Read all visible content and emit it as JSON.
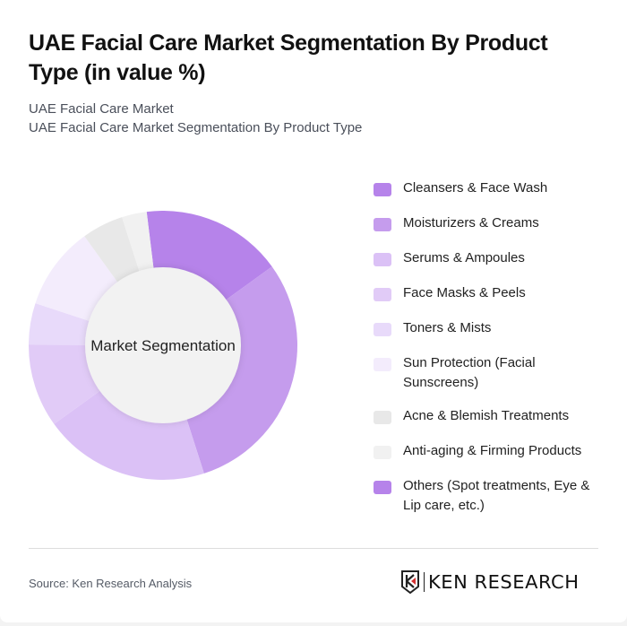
{
  "header": {
    "title": "UAE Facial Care Market Segmentation By Product Type (in value %)",
    "subtitle_1": "UAE Facial Care Market",
    "subtitle_2": "UAE Facial Care Market Segmentation By Product Type"
  },
  "chart_data": {
    "type": "pie",
    "subtype": "donut",
    "title": "UAE Facial Care Market Segmentation By Product Type (in value %)",
    "center_label": "Market Segmentation",
    "legend_position": "right",
    "categories": [
      "Cleansers & Face Wash",
      "Moisturizers & Creams",
      "Serums & Ampoules",
      "Face Masks & Peels",
      "Toners & Mists",
      "Sun Protection (Facial Sunscreens)",
      "Acne & Blemish Treatments",
      "Anti-aging & Firming Products",
      "Others (Spot treatments, Eye & Lip care, etc.)"
    ],
    "values": [
      17,
      30,
      20,
      10,
      5,
      10,
      5,
      3,
      0
    ],
    "colors": [
      "#b683ea",
      "#c59ced",
      "#dbc1f6",
      "#e1cbf7",
      "#e8dafa",
      "#f3ecfc",
      "#e8e8e8",
      "#f1f1f1",
      "#b683ea"
    ],
    "start_angle_deg": -7
  },
  "legend": {
    "items": [
      {
        "label": "Cleansers & Face Wash",
        "color": "#b683ea"
      },
      {
        "label": "Moisturizers & Creams",
        "color": "#c59ced"
      },
      {
        "label": "Serums & Ampoules",
        "color": "#dbc1f6"
      },
      {
        "label": "Face Masks & Peels",
        "color": "#e1cbf7"
      },
      {
        "label": "Toners & Mists",
        "color": "#e8dafa"
      },
      {
        "label": "Sun Protection (Facial Sunscreens)",
        "color": "#f3ecfc"
      },
      {
        "label": "Acne & Blemish Treatments",
        "color": "#e8e8e8"
      },
      {
        "label": "Anti-aging & Firming Products",
        "color": "#f1f1f1"
      },
      {
        "label": "Others (Spot treatments, Eye & Lip care, etc.)",
        "color": "#b683ea"
      }
    ]
  },
  "footer": {
    "source": "Source: Ken Research Analysis",
    "logo_text": "KEN RESEARCH"
  }
}
